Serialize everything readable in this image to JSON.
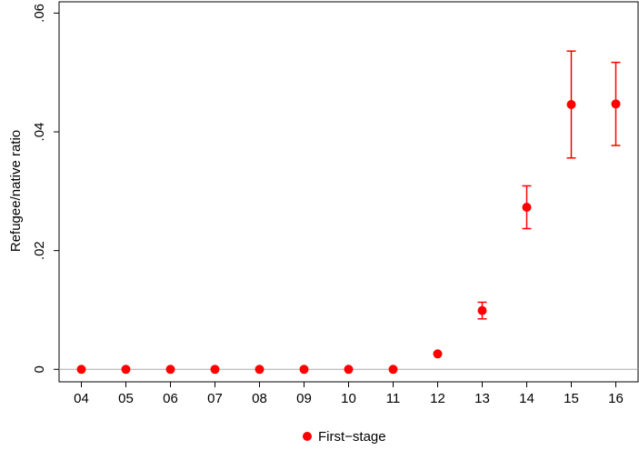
{
  "chart_data": {
    "type": "scatter",
    "y_label": "Refugee/native ratio",
    "categories": [
      "04",
      "05",
      "06",
      "07",
      "08",
      "09",
      "10",
      "11",
      "12",
      "13",
      "14",
      "15",
      "16"
    ],
    "series": [
      {
        "name": "First−stage",
        "color": "#ff0000",
        "values": [
          0,
          0,
          0,
          0,
          0,
          0,
          0,
          0,
          0.0026,
          0.0099,
          0.0273,
          0.0446,
          0.0447
        ],
        "errors": [
          null,
          null,
          null,
          null,
          null,
          null,
          null,
          null,
          null,
          0.0014,
          0.0036,
          0.009,
          0.007
        ]
      }
    ],
    "ylim": [
      -0.0021,
      0.0619
    ],
    "yticks": [
      0,
      {
        "value": 0.02,
        "label": ".02"
      },
      {
        "value": 0.04,
        "label": ".04"
      },
      {
        "value": 0.06,
        "label": ".06"
      }
    ],
    "reference_line": 0,
    "legend": "bottom"
  }
}
